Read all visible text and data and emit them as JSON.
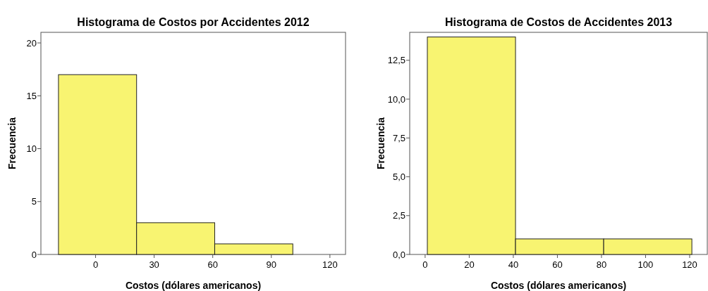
{
  "chart_data": [
    {
      "type": "histogram",
      "title": "Histograma de Costos por Accidentes 2012",
      "xlabel": "Costos (dólares americanos)",
      "ylabel": "Frecuencia",
      "bins": [
        -19,
        21,
        61,
        101
      ],
      "values": [
        17,
        3,
        1
      ],
      "color": "#f8f471",
      "xlim": [
        -28,
        128
      ],
      "ylim": [
        0,
        21
      ],
      "xticks": [
        0,
        30,
        60,
        90,
        120
      ],
      "yticks": [
        0,
        5,
        10,
        15,
        20
      ]
    },
    {
      "type": "histogram",
      "title": "Histograma de Costos de Accidentes 2013",
      "xlabel": "Costos (dólares americanos)",
      "ylabel": "Frecuencia",
      "bins": [
        1,
        41,
        81,
        121
      ],
      "values": [
        14,
        1,
        1
      ],
      "color": "#f8f471",
      "xlim": [
        -7,
        128
      ],
      "ylim": [
        0,
        14.3
      ],
      "xticks": [
        0,
        20,
        40,
        60,
        80,
        100,
        120
      ],
      "yticks": [
        {
          "value": 0,
          "label": "0,0"
        },
        {
          "value": 2.5,
          "label": "2,5"
        },
        {
          "value": 5,
          "label": "5,0"
        },
        {
          "value": 7.5,
          "label": "7,5"
        },
        {
          "value": 10,
          "label": "10,0"
        },
        {
          "value": 12.5,
          "label": "12,5"
        }
      ]
    }
  ]
}
